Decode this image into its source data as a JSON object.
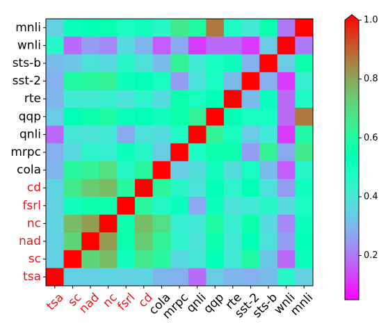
{
  "chart_data": {
    "type": "heatmap",
    "x_labels": [
      "tsa",
      "sc",
      "nad",
      "nc",
      "fsrl",
      "cd",
      "cola",
      "mrpc",
      "qnli",
      "qqp",
      "rte",
      "sst-2",
      "sts-b",
      "wnli",
      "mnli"
    ],
    "y_labels": [
      "mnli",
      "wnli",
      "sts-b",
      "sst-2",
      "rte",
      "qqp",
      "qnli",
      "mrpc",
      "cola",
      "cd",
      "fsrl",
      "nc",
      "nad",
      "sc",
      "tsa"
    ],
    "highlighted_labels": [
      "tsa",
      "sc",
      "nad",
      "nc",
      "fsrl",
      "cd"
    ],
    "highlight_color": "#e8161a",
    "normal_label_color": "#000000",
    "colormap": "rainbow",
    "vmin": 0.05,
    "vmax": 1.0,
    "colorbar_ticks": [
      "0.2",
      "0.4",
      "0.6",
      "0.8",
      "1.0"
    ],
    "colorbar_tick_values": [
      0.2,
      0.4,
      0.6,
      0.8,
      1.0
    ],
    "values": [
      [
        0.34,
        0.5,
        0.52,
        0.54,
        0.47,
        0.49,
        0.45,
        0.65,
        0.58,
        0.85,
        0.47,
        0.4,
        0.55,
        0.2,
        1.0
      ],
      [
        0.45,
        0.18,
        0.25,
        0.22,
        0.36,
        0.29,
        0.16,
        0.27,
        0.12,
        0.18,
        0.18,
        0.12,
        0.33,
        1.0,
        0.2
      ],
      [
        0.3,
        0.32,
        0.38,
        0.36,
        0.45,
        0.38,
        0.3,
        0.62,
        0.4,
        0.48,
        0.5,
        0.28,
        1.0,
        0.33,
        0.55
      ],
      [
        0.28,
        0.58,
        0.6,
        0.62,
        0.5,
        0.52,
        0.48,
        0.25,
        0.38,
        0.48,
        0.3,
        1.0,
        0.28,
        0.12,
        0.42
      ],
      [
        0.29,
        0.4,
        0.4,
        0.42,
        0.38,
        0.44,
        0.37,
        0.55,
        0.48,
        0.52,
        1.0,
        0.3,
        0.5,
        0.18,
        0.47
      ],
      [
        0.33,
        0.52,
        0.55,
        0.58,
        0.5,
        0.52,
        0.49,
        0.55,
        0.62,
        1.0,
        0.52,
        0.48,
        0.48,
        0.18,
        0.85
      ],
      [
        0.18,
        0.39,
        0.38,
        0.4,
        0.27,
        0.38,
        0.37,
        0.47,
        1.0,
        0.62,
        0.48,
        0.33,
        0.4,
        0.12,
        0.58
      ],
      [
        0.28,
        0.36,
        0.44,
        0.42,
        0.5,
        0.45,
        0.33,
        1.0,
        0.47,
        0.55,
        0.55,
        0.25,
        0.62,
        0.27,
        0.65
      ],
      [
        0.29,
        0.6,
        0.62,
        0.68,
        0.46,
        0.6,
        1.0,
        0.33,
        0.37,
        0.49,
        0.37,
        0.48,
        0.3,
        0.16,
        0.45
      ],
      [
        0.35,
        0.65,
        0.72,
        0.75,
        0.6,
        1.0,
        0.6,
        0.45,
        0.38,
        0.52,
        0.44,
        0.52,
        0.38,
        0.25,
        0.49
      ],
      [
        0.34,
        0.49,
        0.55,
        0.55,
        1.0,
        0.6,
        0.46,
        0.5,
        0.27,
        0.5,
        0.38,
        0.4,
        0.45,
        0.36,
        0.47
      ],
      [
        0.35,
        0.75,
        0.8,
        1.0,
        0.55,
        0.75,
        0.68,
        0.42,
        0.4,
        0.58,
        0.42,
        0.55,
        0.36,
        0.22,
        0.5
      ],
      [
        0.34,
        0.7,
        1.0,
        0.8,
        0.55,
        0.72,
        0.62,
        0.44,
        0.38,
        0.55,
        0.4,
        0.52,
        0.38,
        0.25,
        0.52
      ],
      [
        0.34,
        1.0,
        0.7,
        0.75,
        0.49,
        0.65,
        0.6,
        0.36,
        0.39,
        0.52,
        0.4,
        0.58,
        0.32,
        0.18,
        0.5
      ],
      [
        1.0,
        0.34,
        0.34,
        0.35,
        0.34,
        0.35,
        0.29,
        0.28,
        0.18,
        0.33,
        0.29,
        0.28,
        0.3,
        0.45,
        0.34
      ]
    ]
  }
}
